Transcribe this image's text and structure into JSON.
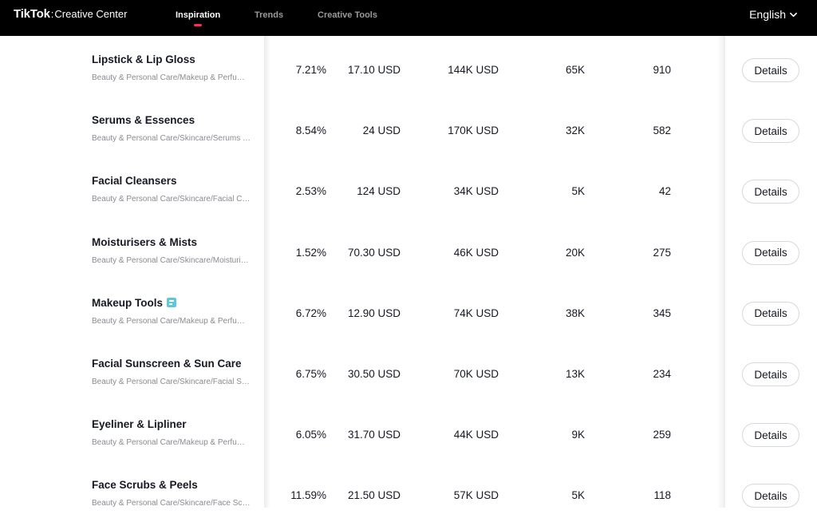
{
  "header": {
    "logo_main": "TikTok",
    "logo_sep": ":",
    "logo_sub": "Creative Center",
    "nav": [
      {
        "label": "Inspiration",
        "active": true
      },
      {
        "label": "Trends",
        "active": false
      },
      {
        "label": "Creative Tools",
        "active": false
      }
    ],
    "language": "English",
    "accent_color": "#fe2c55"
  },
  "table": {
    "details_label": "Details",
    "rows": [
      {
        "name": "Lipstick & Lip Gloss",
        "category": "Beauty & Personal Care/Makeup & Perfume/Lipstick & Lip Gloss",
        "v1": "7.21%",
        "v2": "17.10 USD",
        "v3": "144K USD",
        "v4": "65K",
        "v5": "910",
        "badge": false
      },
      {
        "name": "Serums & Essences",
        "category": "Beauty & Personal Care/Skincare/Serums & Essences",
        "v1": "8.54%",
        "v2": "24 USD",
        "v3": "170K USD",
        "v4": "32K",
        "v5": "582",
        "badge": false
      },
      {
        "name": "Facial Cleansers",
        "category": "Beauty & Personal Care/Skincare/Facial Cleansers",
        "v1": "2.53%",
        "v2": "124 USD",
        "v3": "34K USD",
        "v4": "5K",
        "v5": "42",
        "badge": false
      },
      {
        "name": "Moisturisers & Mists",
        "category": "Beauty & Personal Care/Skincare/Moisturisers & Mists",
        "v1": "1.52%",
        "v2": "70.30 USD",
        "v3": "46K USD",
        "v4": "20K",
        "v5": "275",
        "badge": false
      },
      {
        "name": "Makeup Tools",
        "category": "Beauty & Personal Care/Makeup & Perfume/Makeup Tools",
        "v1": "6.72%",
        "v2": "12.90 USD",
        "v3": "74K USD",
        "v4": "38K",
        "v5": "345",
        "badge": true
      },
      {
        "name": "Facial Sunscreen & Sun Care",
        "category": "Beauty & Personal Care/Skincare/Facial Sunscreen & Sun Care",
        "v1": "6.75%",
        "v2": "30.50 USD",
        "v3": "70K USD",
        "v4": "13K",
        "v5": "234",
        "badge": false
      },
      {
        "name": "Eyeliner & Lipliner",
        "category": "Beauty & Personal Care/Makeup & Perfume/Eyeliner & Lipliner",
        "v1": "6.05%",
        "v2": "31.70 USD",
        "v3": "44K USD",
        "v4": "9K",
        "v5": "259",
        "badge": false
      },
      {
        "name": "Face Scrubs & Peels",
        "category": "Beauty & Personal Care/Skincare/Face Scrubs & Peels",
        "v1": "11.59%",
        "v2": "21.50 USD",
        "v3": "57K USD",
        "v4": "5K",
        "v5": "118",
        "badge": false
      }
    ]
  }
}
